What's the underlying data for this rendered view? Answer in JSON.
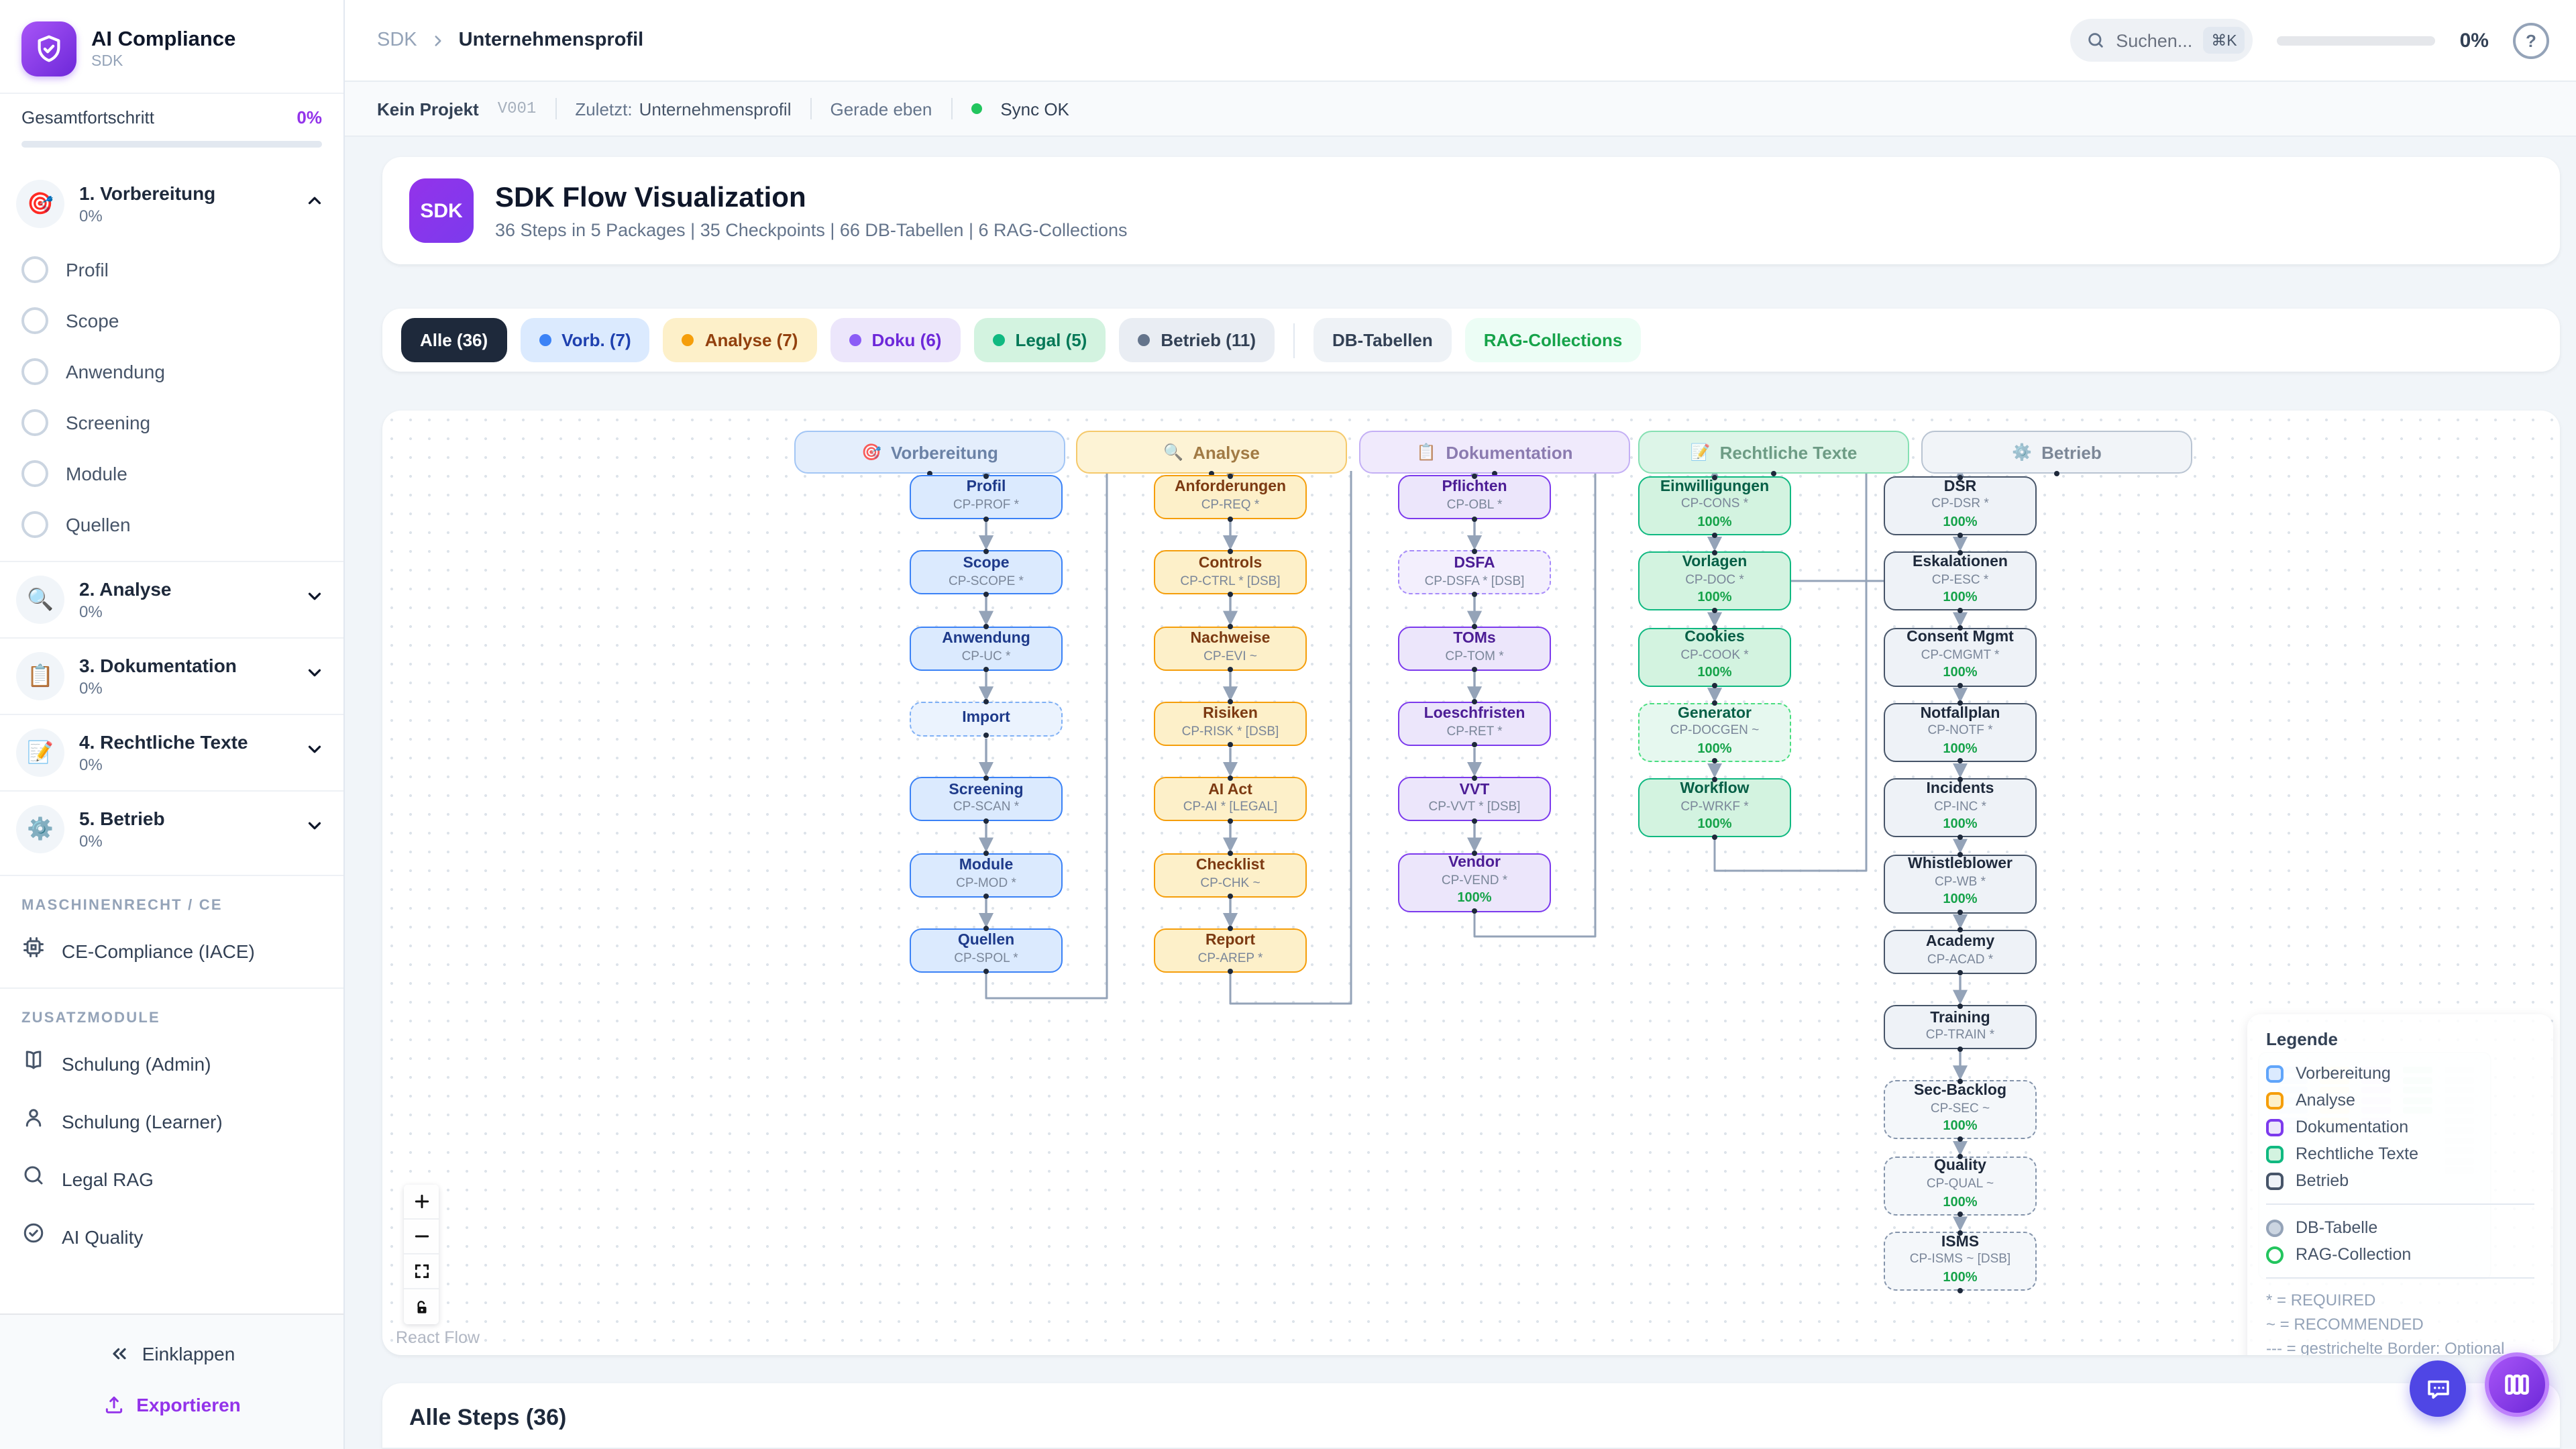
{
  "app": {
    "name": "AI Compliance",
    "sub": "SDK"
  },
  "sidebar": {
    "progress_label": "Gesamtfortschritt",
    "progress_value": "0%",
    "phases": [
      {
        "icon": "🎯",
        "label": "1. Vorbereitung",
        "percent": "0%",
        "expanded": true,
        "steps": [
          "Profil",
          "Scope",
          "Anwendung",
          "Screening",
          "Module",
          "Quellen"
        ]
      },
      {
        "icon": "🔍",
        "label": "2. Analyse",
        "percent": "0%"
      },
      {
        "icon": "📋",
        "label": "3. Dokumentation",
        "percent": "0%"
      },
      {
        "icon": "📝",
        "label": "4. Rechtliche Texte",
        "percent": "0%"
      },
      {
        "icon": "⚙️",
        "label": "5. Betrieb",
        "percent": "0%"
      }
    ],
    "sections": [
      {
        "title": "MASCHINENRECHT / CE",
        "items": [
          {
            "icon": "cpu",
            "label": "CE-Compliance (IACE)"
          }
        ]
      },
      {
        "title": "ZUSATZMODULE",
        "items": [
          {
            "icon": "book",
            "label": "Schulung (Admin)"
          },
          {
            "icon": "user",
            "label": "Schulung (Learner)"
          },
          {
            "icon": "search",
            "label": "Legal RAG"
          },
          {
            "icon": "check-circle",
            "label": "AI Quality"
          }
        ]
      }
    ],
    "collapse_label": "Einklappen",
    "export_label": "Exportieren"
  },
  "header": {
    "breadcrumb_root": "SDK",
    "breadcrumb_leaf": "Unternehmensprofil",
    "search_placeholder": "Suchen...",
    "search_shortcut": "⌘K",
    "progress_value": "0%",
    "help_glyph": "?"
  },
  "statusbar": {
    "project": "Kein Projekt",
    "version": "V001",
    "last_label": "Zuletzt:",
    "last_value": "Unternehmensprofil",
    "time": "Gerade eben",
    "sync": "Sync OK"
  },
  "hero": {
    "badge": "SDK",
    "title": "SDK Flow Visualization",
    "subtitle": "36 Steps in 5 Packages | 35 Checkpoints | 66 DB-Tabellen | 6 RAG-Collections"
  },
  "filters": [
    {
      "label": "Alle (36)",
      "bg": "#1e293b",
      "text": "#ffffff",
      "active": true
    },
    {
      "label": "Vorb. (7)",
      "bg": "#dbeafe",
      "text": "#1e40af",
      "dot": "#3b82f6"
    },
    {
      "label": "Analyse (7)",
      "bg": "#fdf0c9",
      "text": "#92400e",
      "dot": "#f59e0b"
    },
    {
      "label": "Doku (6)",
      "bg": "#ece6fb",
      "text": "#6d28d9",
      "dot": "#8b5cf6"
    },
    {
      "label": "Legal (5)",
      "bg": "#d3f3e0",
      "text": "#047857",
      "dot": "#10b981"
    },
    {
      "label": "Betrieb (11)",
      "bg": "#e9edf3",
      "text": "#334155",
      "dot": "#64748b"
    },
    {
      "label": "DB-Tabellen",
      "bg": "#eef2f6",
      "text": "#334155",
      "group2": true
    },
    {
      "label": "RAG-Collections",
      "bg": "#ecfdf5",
      "text": "#16a34a",
      "group2": true
    }
  ],
  "flow": {
    "edge_color": "#94a3b8",
    "progress_text_color": "#16a34a",
    "progress_bar_color": "#22c55e",
    "attribution": "React Flow",
    "colors": {
      "blue": {
        "bg": "#dbeafe",
        "bgSoft": "#ebf3fe",
        "border": "#3b82f6",
        "borderSoft": "#7fb0f5",
        "title": "#1e3a8a",
        "headerBg": "#e4eefc",
        "headerBorder": "#a3c6f5",
        "headerText": "#6b82a6"
      },
      "amber": {
        "bg": "#fdf0c9",
        "bgSoft": "#fdf6e0",
        "border": "#f59e0b",
        "borderSoft": "#f5c050",
        "title": "#7c3a12",
        "headerBg": "#fdf3d5",
        "headerBorder": "#f5c96b",
        "headerText": "#a17a44"
      },
      "purple": {
        "bg": "#ece6fb",
        "bgSoft": "#f3effd",
        "border": "#7c3aed",
        "borderSoft": "#a78bfa",
        "title": "#4c1d95",
        "headerBg": "#f0eafc",
        "headerBorder": "#c4b0f5",
        "headerText": "#8b7bb0"
      },
      "green": {
        "bg": "#d3f3e0",
        "bgSoft": "#e6f8ef",
        "border": "#10b981",
        "borderSoft": "#4ade80",
        "title": "#065f46",
        "headerBg": "#ddf5e8",
        "headerBorder": "#86e0b3",
        "headerText": "#6d9c85"
      },
      "slate": {
        "bg": "#eef2f7",
        "bgSoft": "#f4f7fa",
        "border": "#475569",
        "borderSoft": "#8494ab",
        "title": "#1e293b",
        "headerBg": "#f1f4f8",
        "headerBorder": "#b9c4d2",
        "headerText": "#7c8797"
      }
    },
    "packages": [
      {
        "label": "Vorbereitung",
        "icon": "🎯",
        "color": "blue",
        "steps": [
          {
            "title": "Profil",
            "code": "CP-PROF *"
          },
          {
            "title": "Scope",
            "code": "CP-SCOPE *"
          },
          {
            "title": "Anwendung",
            "code": "CP-UC *"
          },
          {
            "title": "Import",
            "code": "",
            "dashed": true,
            "short": true
          },
          {
            "title": "Screening",
            "code": "CP-SCAN *"
          },
          {
            "title": "Module",
            "code": "CP-MOD *"
          },
          {
            "title": "Quellen",
            "code": "CP-SPOL *"
          }
        ]
      },
      {
        "label": "Analyse",
        "icon": "🔍",
        "color": "amber",
        "steps": [
          {
            "title": "Anforderungen",
            "code": "CP-REQ *"
          },
          {
            "title": "Controls",
            "code": "CP-CTRL * [DSB]"
          },
          {
            "title": "Nachweise",
            "code": "CP-EVI ~"
          },
          {
            "title": "Risiken",
            "code": "CP-RISK * [DSB]"
          },
          {
            "title": "AI Act",
            "code": "CP-AI * [LEGAL]"
          },
          {
            "title": "Checklist",
            "code": "CP-CHK ~"
          },
          {
            "title": "Report",
            "code": "CP-AREP *"
          }
        ]
      },
      {
        "label": "Dokumentation",
        "icon": "📋",
        "color": "purple",
        "steps": [
          {
            "title": "Pflichten",
            "code": "CP-OBL *"
          },
          {
            "title": "DSFA",
            "code": "CP-DSFA * [DSB]",
            "dashed": true
          },
          {
            "title": "TOMs",
            "code": "CP-TOM *"
          },
          {
            "title": "Loeschfristen",
            "code": "CP-RET *"
          },
          {
            "title": "VVT",
            "code": "CP-VVT * [DSB]"
          },
          {
            "title": "Vendor",
            "code": "CP-VEND *",
            "progress": "100%"
          }
        ]
      },
      {
        "label": "Rechtliche Texte",
        "icon": "📝",
        "color": "green",
        "steps": [
          {
            "title": "Einwilligungen",
            "code": "CP-CONS *",
            "progress": "100%"
          },
          {
            "title": "Vorlagen",
            "code": "CP-DOC *",
            "progress": "100%"
          },
          {
            "title": "Cookies",
            "code": "CP-COOK *",
            "progress": "100%"
          },
          {
            "title": "Generator",
            "code": "CP-DOCGEN ~",
            "progress": "100%",
            "dashed": true
          },
          {
            "title": "Workflow",
            "code": "CP-WRKF *",
            "progress": "100%"
          }
        ]
      },
      {
        "label": "Betrieb",
        "icon": "⚙️",
        "color": "slate",
        "steps": [
          {
            "title": "DSR",
            "code": "CP-DSR *",
            "progress": "100%"
          },
          {
            "title": "Eskalationen",
            "code": "CP-ESC *",
            "progress": "100%"
          },
          {
            "title": "Consent Mgmt",
            "code": "CP-CMGMT *",
            "progress": "100%"
          },
          {
            "title": "Notfallplan",
            "code": "CP-NOTF *",
            "progress": "100%"
          },
          {
            "title": "Incidents",
            "code": "CP-INC *",
            "progress": "100%"
          },
          {
            "title": "Whistleblower",
            "code": "CP-WB *",
            "progress": "100%"
          },
          {
            "title": "Academy",
            "code": "CP-ACAD *"
          },
          {
            "title": "Training",
            "code": "CP-TRAIN *"
          },
          {
            "title": "Sec-Backlog",
            "code": "CP-SEC ~",
            "progress": "100%",
            "dashed": true
          },
          {
            "title": "Quality",
            "code": "CP-QUAL ~",
            "progress": "100%",
            "dashed": true
          },
          {
            "title": "ISMS",
            "code": "CP-ISMS ~ [DSB]",
            "progress": "100%",
            "dashed": true
          }
        ]
      }
    ],
    "legend": {
      "title": "Legende",
      "package_items": [
        {
          "label": "Vorbereitung",
          "color": "blue"
        },
        {
          "label": "Analyse",
          "color": "amber"
        },
        {
          "label": "Dokumentation",
          "color": "purple"
        },
        {
          "label": "Rechtliche Texte",
          "color": "green"
        },
        {
          "label": "Betrieb",
          "color": "slate"
        }
      ],
      "marker_items": [
        {
          "label": "DB-Tabelle",
          "fill": "#cbd5e1",
          "border": "#94a3b8"
        },
        {
          "label": "RAG-Collection",
          "fill": "transparent",
          "border": "#22c55e"
        }
      ],
      "notes": [
        "* = REQUIRED",
        "~ = RECOMMENDED",
        "--- = gestrichelte Border: Optional"
      ]
    }
  },
  "bottom": {
    "title": "Alle Steps (36)"
  }
}
